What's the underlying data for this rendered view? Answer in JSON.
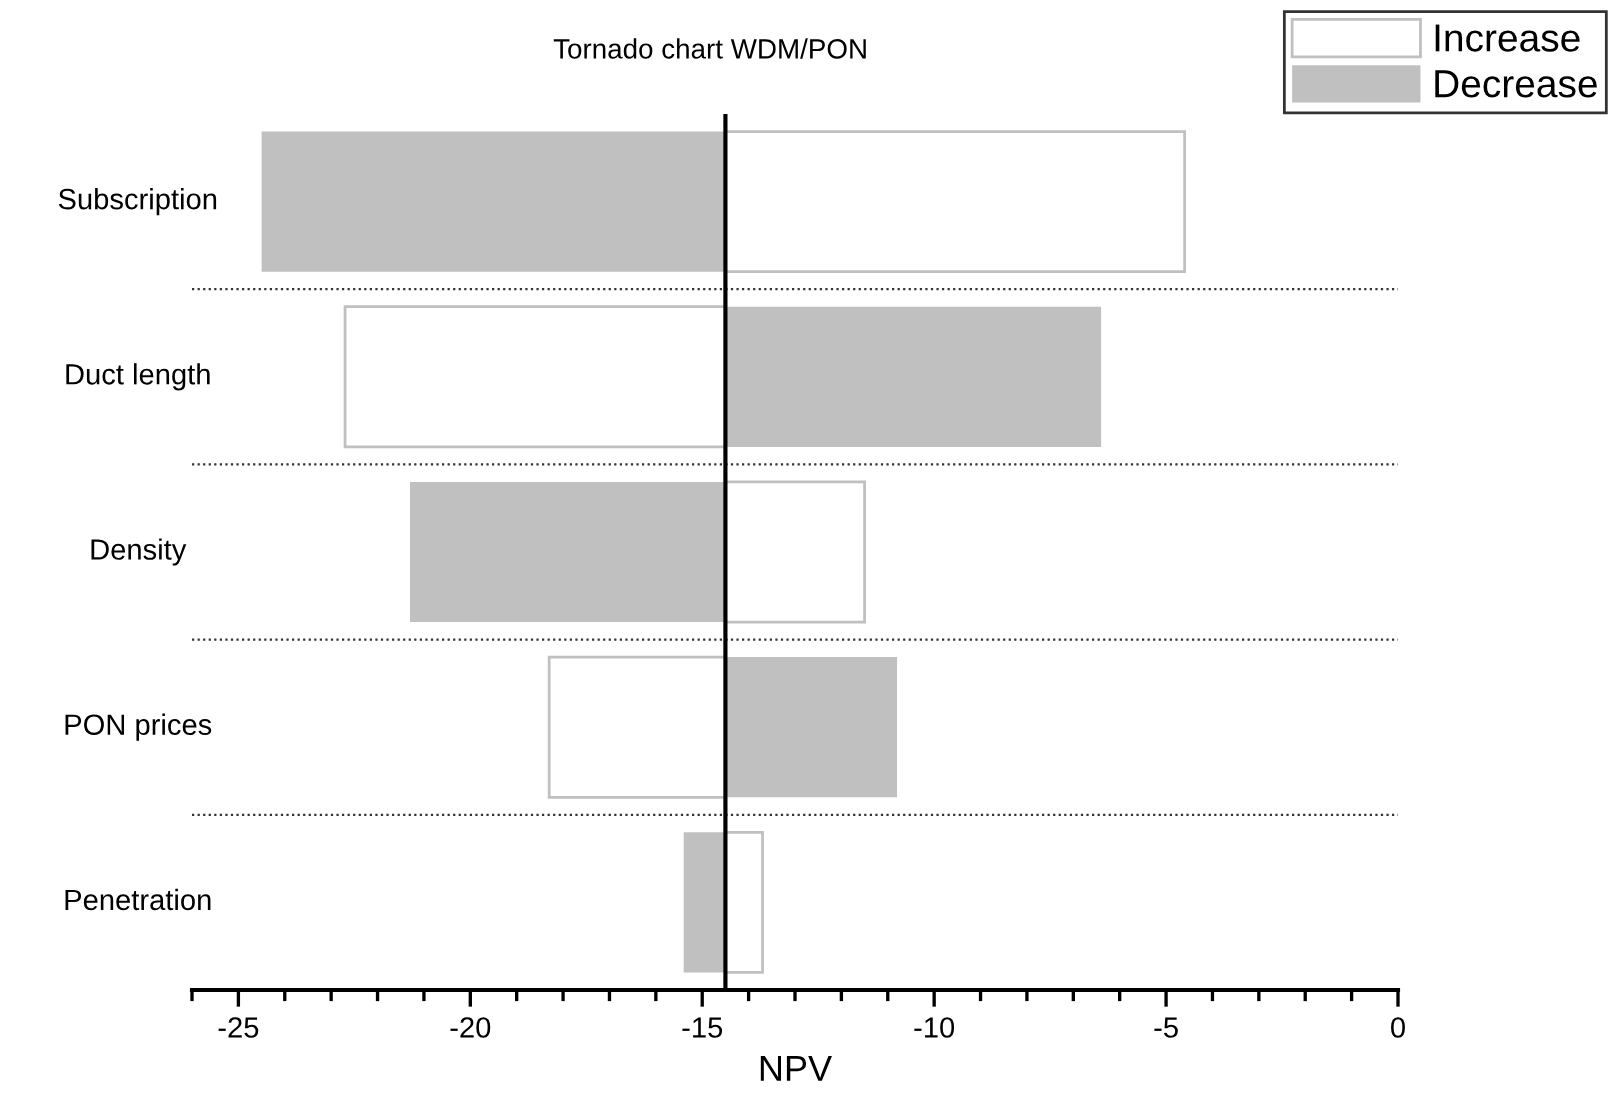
{
  "chart_data": {
    "type": "bar",
    "orientation": "horizontal",
    "title": "Tornado chart WDM/PON",
    "xlabel": "NPV",
    "categories": [
      "Subscription",
      "Duct length",
      "Density",
      "PON prices",
      "Penetration"
    ],
    "series": [
      {
        "name": "Increase",
        "color": "#ffffff",
        "values": [
          9.9,
          -8.2,
          3.0,
          -3.8,
          0.8
        ],
        "base": [
          -14.5,
          -14.5,
          -14.5,
          -14.5,
          -14.5
        ]
      },
      {
        "name": "Decrease",
        "color": "#c0c0c0",
        "values": [
          -10.0,
          8.1,
          -6.8,
          3.7,
          -0.9
        ],
        "base": [
          -14.5,
          -14.5,
          -14.5,
          -14.5,
          -14.5
        ]
      }
    ],
    "xlim": [
      -26,
      0
    ],
    "xticks": [
      -25,
      -20,
      -15,
      -10,
      -5,
      0
    ],
    "ref_lines": [
      {
        "axis": "x",
        "value": -14.5,
        "color": "#000000"
      }
    ],
    "grid": "y",
    "legend": "top right"
  }
}
